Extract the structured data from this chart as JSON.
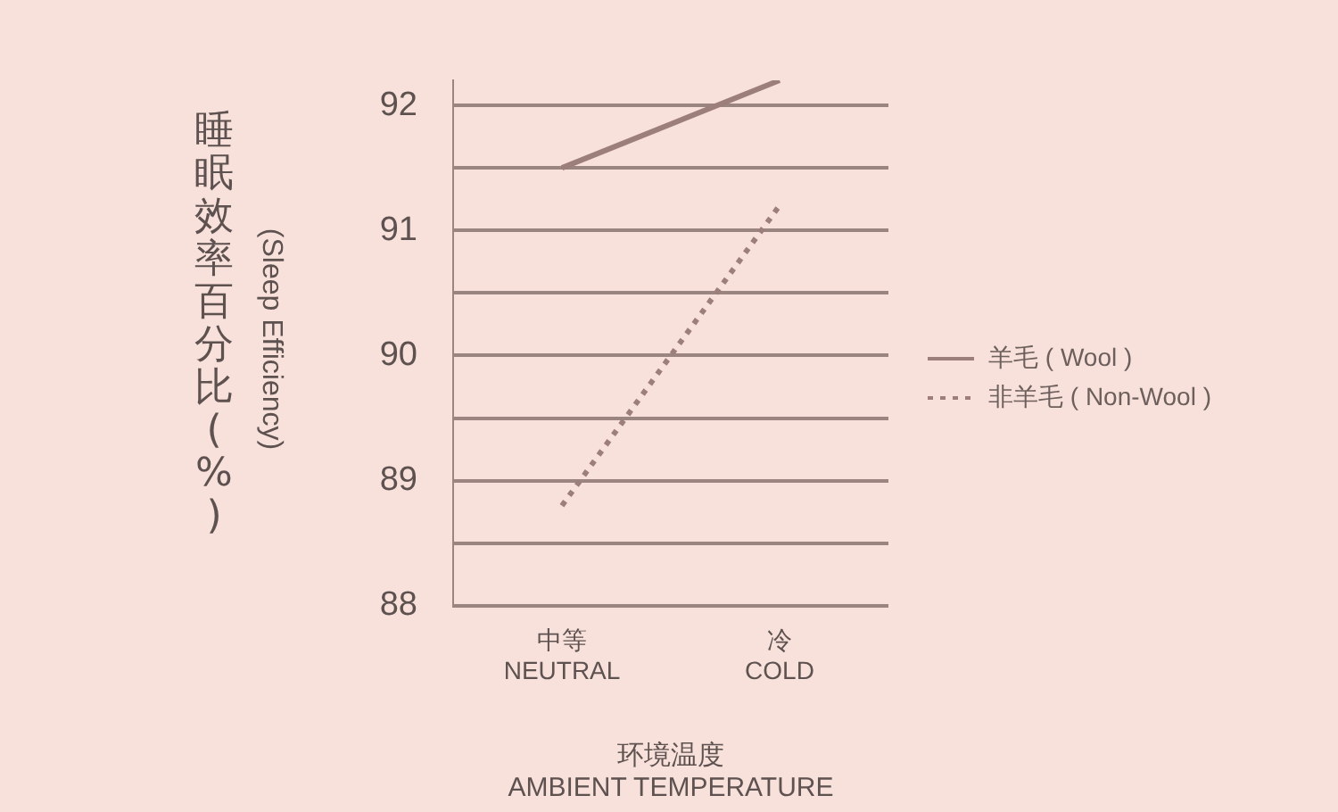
{
  "chart_data": {
    "type": "line",
    "categories": [
      "中等\nNEUTRAL",
      "冷\nCOLD"
    ],
    "xlabel": "环境温度\nAMBIENT TEMPERATURE",
    "ylabel": "睡眠效率百分比(%)\n(Sleep Efficiency)",
    "series": [
      {
        "name": "羊毛 ( Wool )",
        "color": "#9c7f7a",
        "values": [
          91.5,
          92.2
        ],
        "line_style": "solid"
      },
      {
        "name": "非羊毛 ( Non-Wool )",
        "color": "#9c7f7a",
        "values": [
          88.8,
          91.2
        ],
        "line_style": "dotted"
      }
    ],
    "yticks": [
      88,
      {
        "value": 88.5,
        "label": null
      },
      89,
      {
        "value": 89.5,
        "label": null
      },
      90,
      {
        "value": 90.5,
        "label": null
      },
      91,
      {
        "value": 91.5,
        "label": null
      },
      92
    ],
    "ylim": [
      88,
      92.2
    ],
    "grid": "y",
    "legend": "right",
    "marker": "none"
  }
}
